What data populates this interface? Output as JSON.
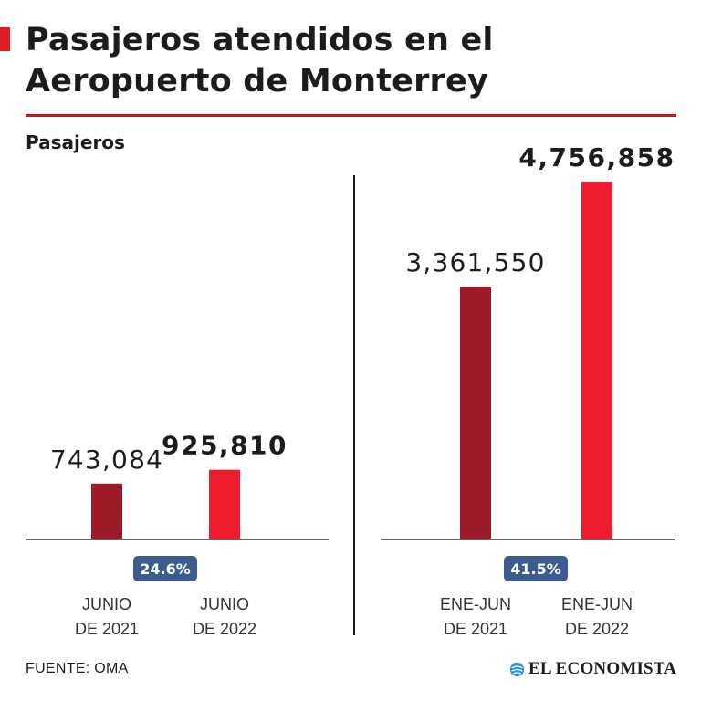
{
  "title": "Pasajeros atendidos en el Aeropuerto de Monterrey",
  "subtitle": "Pasajeros",
  "source": "FUENTE: OMA",
  "logo_text": "EL ECONOMISTA",
  "colors": {
    "accent": "#e31b23",
    "bar_2021": "#9b1c28",
    "bar_2022": "#ed1c2e",
    "badge": "#3c5b8f",
    "axis": "#333333"
  },
  "chart_data": [
    {
      "type": "bar",
      "categories": [
        "JUNIO DE 2021",
        "JUNIO DE 2022"
      ],
      "category_lines": [
        [
          "JUNIO",
          "DE 2021"
        ],
        [
          "JUNIO",
          "DE 2022"
        ]
      ],
      "values": [
        743084,
        925810
      ],
      "value_labels": [
        "743,084",
        "925,810"
      ],
      "change_label": "24.6%",
      "ylim": [
        0,
        5000000
      ]
    },
    {
      "type": "bar",
      "categories": [
        "ENE-JUN DE 2021",
        "ENE-JUN DE 2022"
      ],
      "category_lines": [
        [
          "ENE-JUN",
          "DE 2021"
        ],
        [
          "ENE-JUN",
          "DE 2022"
        ]
      ],
      "values": [
        3361550,
        4756858
      ],
      "value_labels": [
        "3,361,550",
        "4,756,858"
      ],
      "change_label": "41.5%",
      "ylim": [
        0,
        5000000
      ]
    }
  ]
}
